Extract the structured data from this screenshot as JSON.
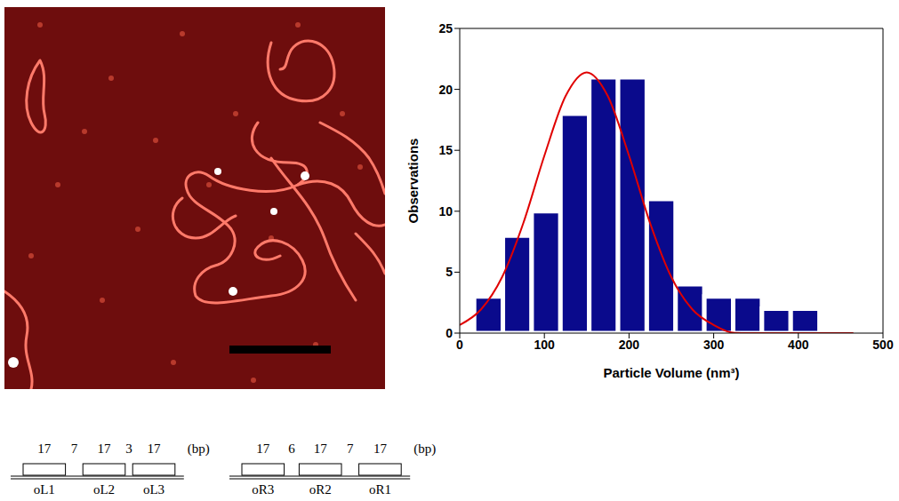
{
  "chart_data": {
    "type": "histogram",
    "x_label": "Particle Volume (nm³)",
    "y_label": "Observations",
    "bins": [
      17,
      51,
      85,
      119,
      153,
      187,
      221,
      255,
      289,
      323,
      357,
      391,
      425
    ],
    "counts": [
      3,
      8,
      10,
      18,
      21,
      21,
      11,
      4,
      3,
      3,
      2,
      2
    ],
    "color": "#0a0a8c",
    "xlim": [
      0,
      500
    ],
    "xticks": [
      0,
      100,
      200,
      300,
      400,
      500
    ],
    "ylim": [
      0,
      25
    ],
    "yticks": [
      0,
      5,
      10,
      15,
      20,
      25
    ],
    "fit_curve": {
      "type": "line",
      "color": "#e00000",
      "x": [
        0,
        25,
        50,
        75,
        100,
        125,
        150,
        175,
        200,
        225,
        250,
        275,
        300,
        325,
        350,
        375,
        400,
        425,
        450,
        465
      ],
      "values": [
        0.67,
        1.93,
        4.59,
        9.0,
        14.56,
        19.44,
        21.4,
        19.44,
        14.56,
        9.0,
        4.59,
        1.93,
        0.67,
        0.01,
        0,
        0,
        0,
        0,
        0,
        0
      ]
    }
  },
  "diagram": {
    "unit": "(bp)",
    "groups": [
      {
        "sites": [
          {
            "name": "oL1",
            "length": 17
          },
          {
            "name": "oL2",
            "length": 17
          },
          {
            "name": "oL3",
            "length": 17
          }
        ],
        "spacers": [
          7,
          3
        ]
      },
      {
        "sites": [
          {
            "name": "oR3",
            "length": 17
          },
          {
            "name": "oR2",
            "length": 17
          },
          {
            "name": "oR1",
            "length": 17
          }
        ],
        "spacers": [
          6,
          7
        ]
      }
    ]
  }
}
